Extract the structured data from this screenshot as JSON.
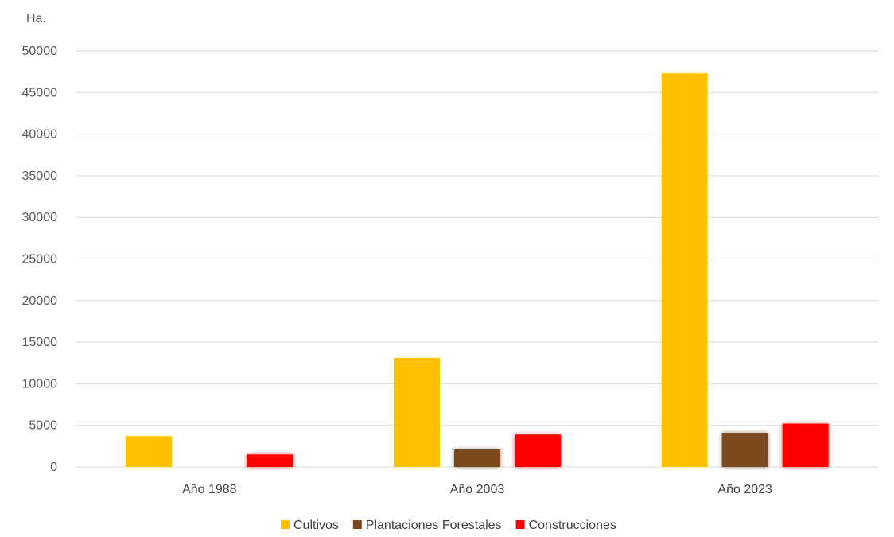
{
  "chart_data": {
    "type": "bar",
    "ylabel": "Ha.",
    "categories": [
      "Año 1988",
      "Año 2003",
      "Año 2023"
    ],
    "ylim": [
      0,
      50000
    ],
    "yticks": [
      0,
      5000,
      10000,
      15000,
      20000,
      25000,
      30000,
      35000,
      40000,
      45000,
      50000
    ],
    "series": [
      {
        "name": "Cultivos",
        "values": [
          3700,
          13100,
          47300
        ],
        "color": "#ffc000",
        "glow": "#ffff66"
      },
      {
        "name": "Plantaciones Forestales",
        "values": [
          0,
          2100,
          4100
        ],
        "color": "#7a4a1e",
        "glow": "#5a3a14"
      },
      {
        "name": "Construcciones",
        "values": [
          1500,
          3900,
          5200
        ],
        "color": "#ff0000",
        "glow": "#c00000"
      }
    ],
    "grid": true,
    "legend_position": "bottom"
  }
}
